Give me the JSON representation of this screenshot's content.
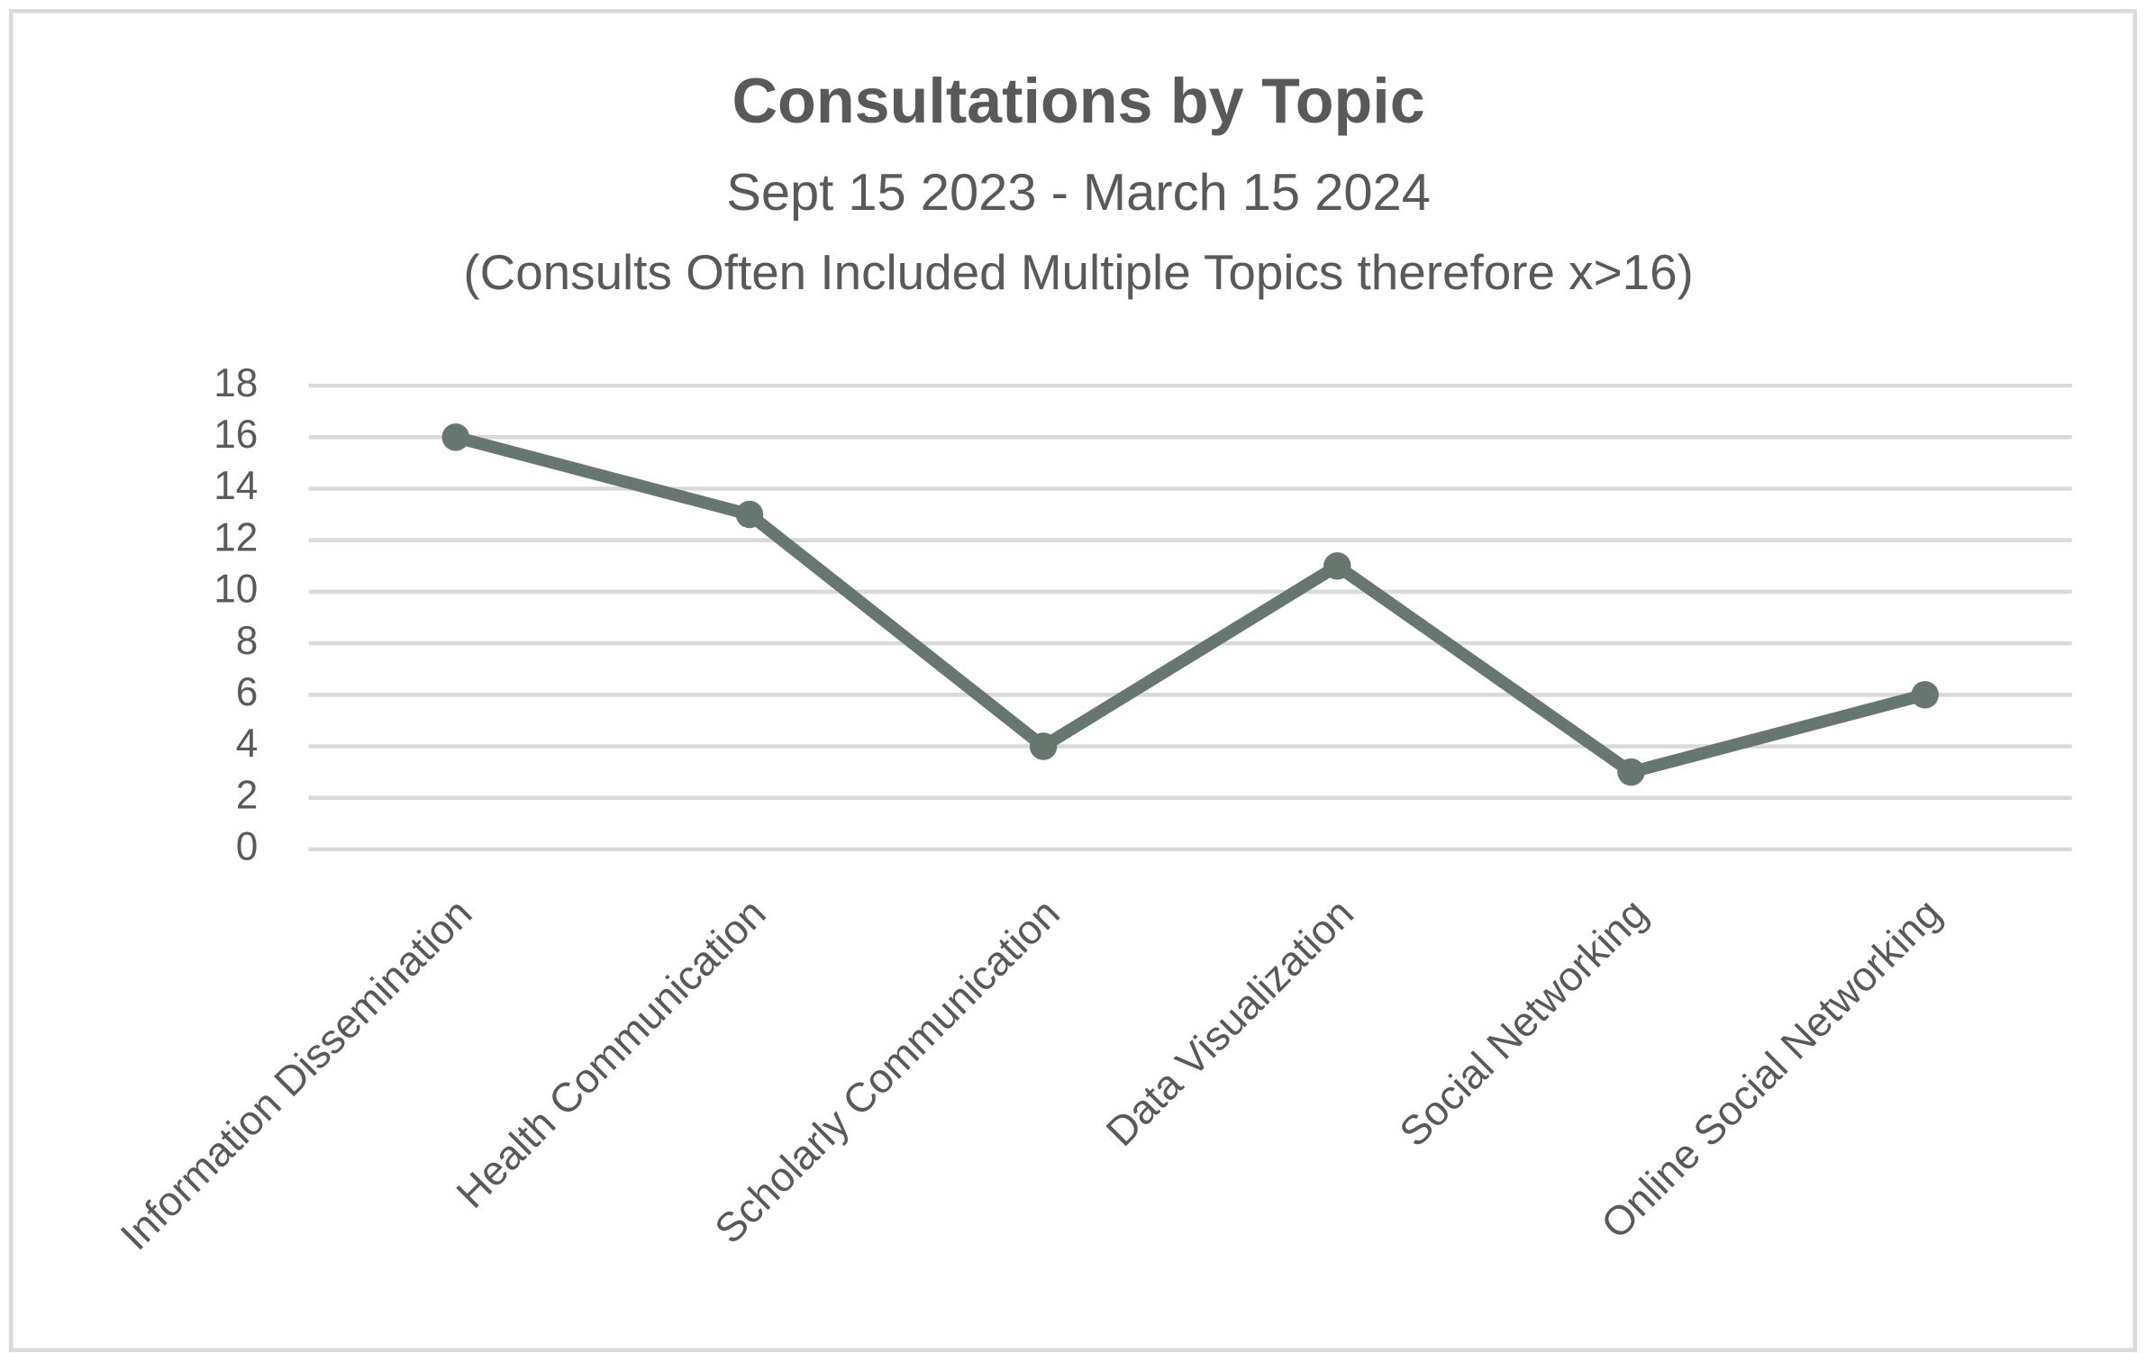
{
  "chart_data": {
    "type": "line",
    "title": "Consultations by Topic",
    "subtitle": "Sept 15 2023 - March 15 2024",
    "annotation": "(Consults Often Included Multiple Topics therefore x>16)",
    "categories": [
      "Information Dissemination",
      "Health Communication",
      "Scholarly Communication",
      "Data Visualization",
      "Social Networking",
      "Online Social Networking"
    ],
    "series": [
      {
        "name": "Consultations",
        "color": "#67766e",
        "values": [
          16,
          13,
          4,
          11,
          3,
          6
        ]
      }
    ],
    "ylim": [
      0,
      18
    ],
    "yticks": [
      0,
      2,
      4,
      6,
      8,
      10,
      12,
      14,
      16,
      18
    ],
    "grid": true,
    "legend": false
  }
}
